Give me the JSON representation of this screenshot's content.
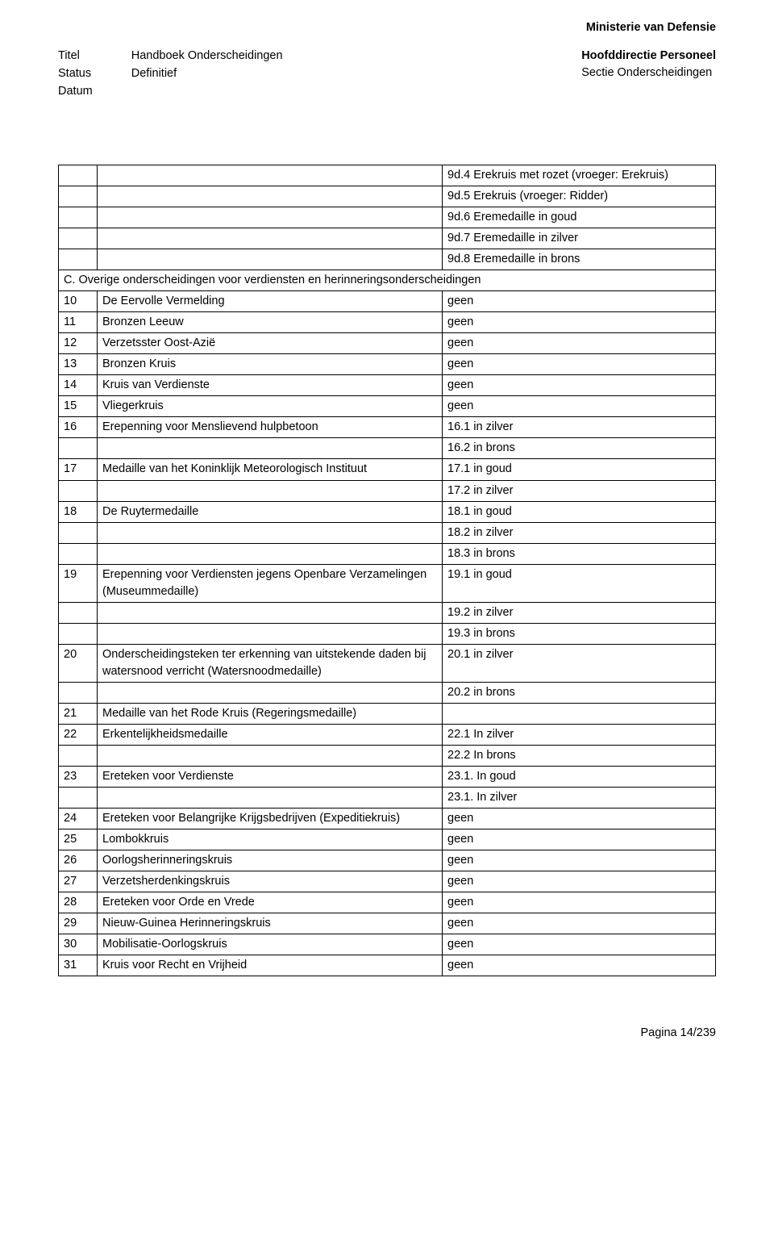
{
  "header": {
    "organization": "Ministerie van Defensie",
    "left_labels": {
      "titel": "Titel",
      "status": "Status",
      "datum": "Datum"
    },
    "left_values": {
      "titel": "Handboek Onderscheidingen",
      "status": "Definitief",
      "datum": ""
    },
    "right": {
      "line1": "Hoofddirectie Personeel",
      "line2": "Sectie Onderscheidingen"
    }
  },
  "rows": [
    {
      "c1": "",
      "c2": "",
      "c3": "9d.4 Erekruis met rozet (vroeger: Erekruis)"
    },
    {
      "c1": "",
      "c2": "",
      "c3": "9d.5 Erekruis (vroeger: Ridder)"
    },
    {
      "c1": "",
      "c2": "",
      "c3": "9d.6 Eremedaille in goud"
    },
    {
      "c1": "",
      "c2": "",
      "c3": "9d.7 Eremedaille in zilver"
    },
    {
      "c1": "",
      "c2": "",
      "c3": "9d.8 Eremedaille in brons"
    },
    {
      "span": true,
      "text": "C. Overige onderscheidingen voor verdiensten en herinneringsonderscheidingen"
    },
    {
      "c1": "10",
      "c2": "De Eervolle Vermelding",
      "c3": "geen"
    },
    {
      "c1": "11",
      "c2": "Bronzen Leeuw",
      "c3": "geen"
    },
    {
      "c1": "12",
      "c2": "Verzetsster Oost-Azië",
      "c3": "geen"
    },
    {
      "c1": "13",
      "c2": "Bronzen Kruis",
      "c3": "geen"
    },
    {
      "c1": "14",
      "c2": "Kruis van Verdienste",
      "c3": "geen"
    },
    {
      "c1": "15",
      "c2": "Vliegerkruis",
      "c3": "geen"
    },
    {
      "c1": "16",
      "c2": "Erepenning voor Menslievend hulpbetoon",
      "c3": "16.1 in zilver"
    },
    {
      "c1": "",
      "c2": "",
      "c3": "16.2 in brons"
    },
    {
      "c1": "17",
      "c2": "Medaille van het Koninklijk Meteorologisch Instituut",
      "c3": "17.1 in goud"
    },
    {
      "c1": "",
      "c2": "",
      "c3": "17.2 in zilver"
    },
    {
      "c1": "18",
      "c2": "De Ruytermedaille",
      "c3": "18.1 in goud"
    },
    {
      "c1": "",
      "c2": "",
      "c3": "18.2 in zilver"
    },
    {
      "c1": "",
      "c2": "",
      "c3": "18.3 in brons"
    },
    {
      "c1": "19",
      "c2": "Erepenning voor Verdiensten jegens Openbare Verzamelingen (Museummedaille)",
      "c3": "19.1 in goud"
    },
    {
      "c1": "",
      "c2": "",
      "c3": "19.2 in zilver"
    },
    {
      "c1": "",
      "c2": "",
      "c3": "19.3 in brons"
    },
    {
      "c1": "20",
      "c2": "Onderscheidingsteken ter erkenning van uitstekende daden bij watersnood verricht (Watersnoodmedaille)",
      "c3": "20.1 in zilver"
    },
    {
      "c1": "",
      "c2": "",
      "c3": "20.2 in brons"
    },
    {
      "c1": "21",
      "c2": "Medaille van het Rode Kruis (Regeringsmedaille)",
      "c3": ""
    },
    {
      "c1": "22",
      "c2": "Erkentelijkheidsmedaille",
      "c3": "22.1 In zilver"
    },
    {
      "c1": "",
      "c2": "",
      "c3": "22.2 In brons"
    },
    {
      "c1": "23",
      "c2": "Ereteken voor Verdienste",
      "c3": "23.1. In goud"
    },
    {
      "c1": "",
      "c2": "",
      "c3": "23.1. In zilver"
    },
    {
      "c1": "24",
      "c2": "Ereteken voor Belangrijke Krijgsbedrijven (Expeditiekruis)",
      "c3": "geen"
    },
    {
      "c1": "25",
      "c2": "Lombokkruis",
      "c3": "geen"
    },
    {
      "c1": "26",
      "c2": "Oorlogsherinneringskruis",
      "c3": "geen"
    },
    {
      "c1": "27",
      "c2": "Verzetsherdenkingskruis",
      "c3": "geen"
    },
    {
      "c1": "28",
      "c2": "Ereteken voor Orde en Vrede",
      "c3": "geen"
    },
    {
      "c1": "29",
      "c2": "Nieuw-Guinea Herinneringskruis",
      "c3": "geen"
    },
    {
      "c1": "30",
      "c2": "Mobilisatie-Oorlogskruis",
      "c3": "geen"
    },
    {
      "c1": "31",
      "c2": "Kruis voor Recht en Vrijheid",
      "c3": "geen"
    }
  ],
  "footer": {
    "page": "Pagina 14/239"
  }
}
